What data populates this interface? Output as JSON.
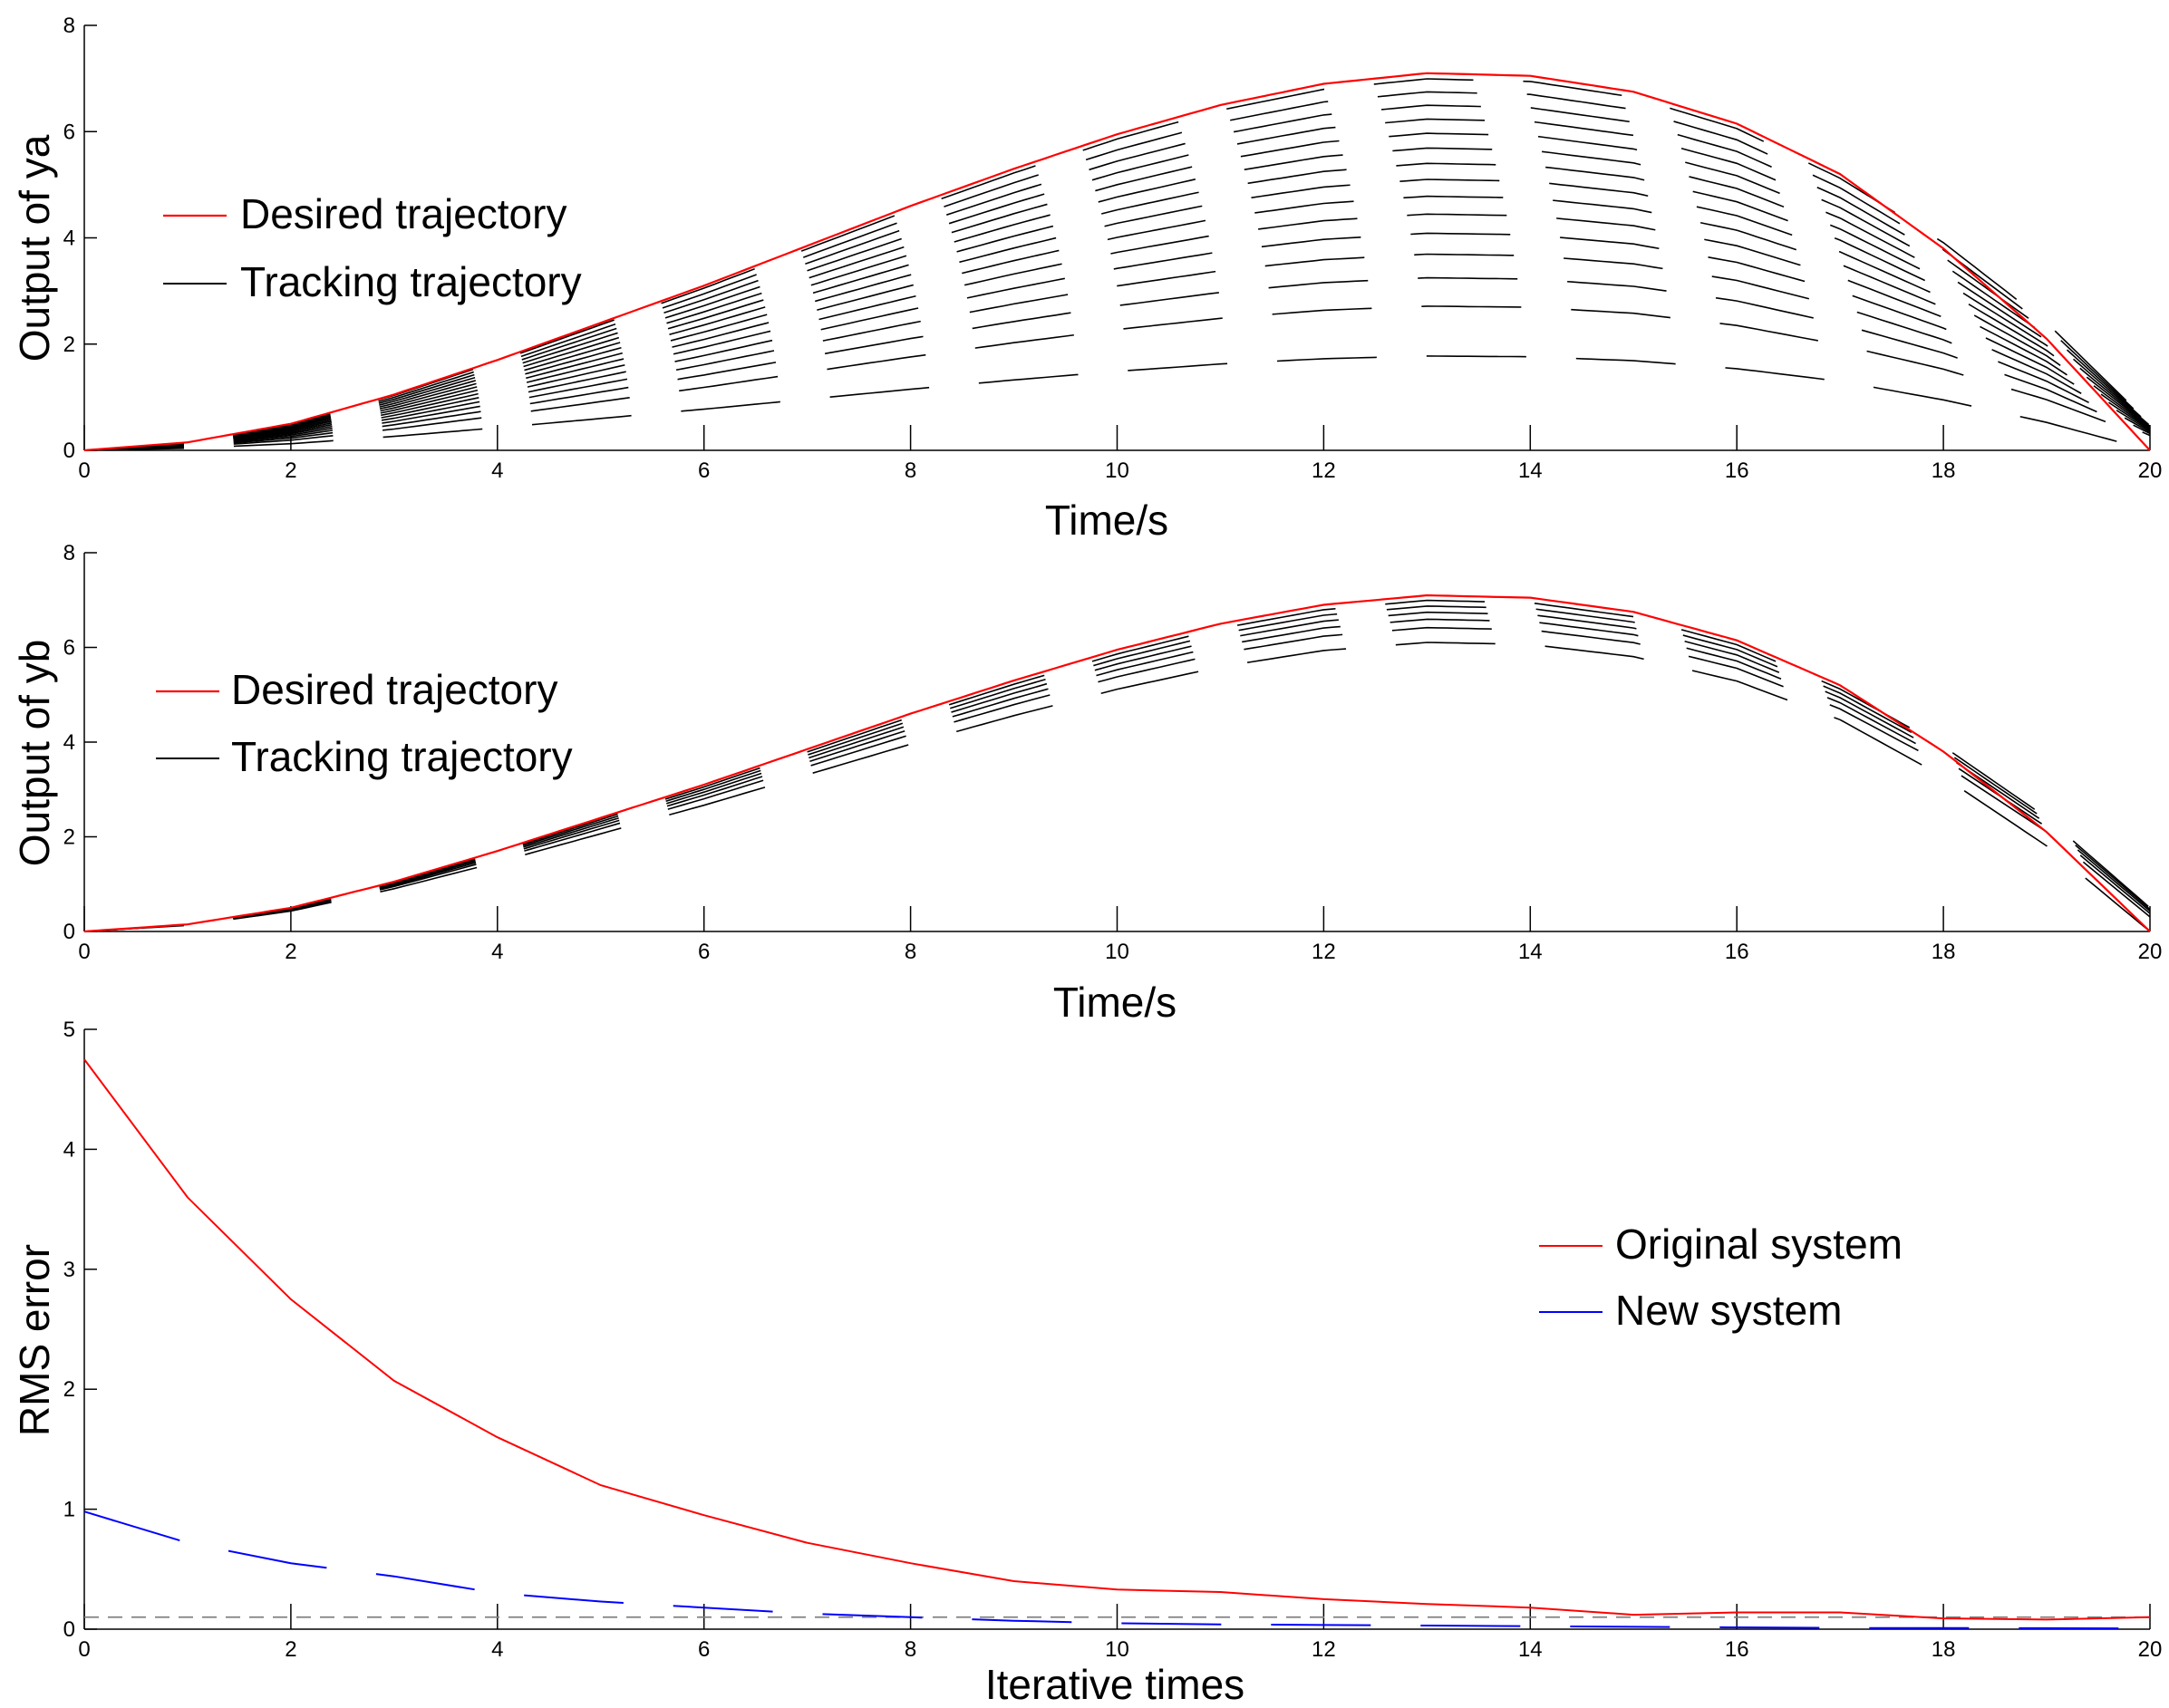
{
  "chart_data": [
    {
      "type": "line",
      "xlabel": "Time/s",
      "ylabel": "Output of ya",
      "xlim": [
        0,
        20
      ],
      "ylim": [
        0,
        8
      ],
      "xticks": [
        "0",
        "2",
        "4",
        "6",
        "8",
        "10",
        "12",
        "14",
        "16",
        "18",
        "20"
      ],
      "yticks": [
        "0",
        "2",
        "4",
        "6",
        "8"
      ],
      "grid": false,
      "legend": {
        "placement": "left",
        "entries": [
          "Desired trajectory",
          "Tracking trajectory"
        ]
      },
      "colors": {
        "desired": "#ff0000",
        "tracking": "#000000"
      },
      "desired": {
        "name": "Desired trajectory",
        "x": [
          0,
          1,
          2,
          3,
          4,
          5,
          6,
          7,
          8,
          9,
          10,
          11,
          12,
          13,
          14,
          15,
          16,
          17,
          18,
          19,
          20
        ],
        "y": [
          0,
          0.15,
          0.5,
          1.05,
          1.7,
          2.4,
          3.1,
          3.85,
          4.6,
          5.3,
          5.95,
          6.5,
          6.9,
          7.1,
          7.05,
          6.75,
          6.15,
          5.2,
          3.8,
          2.1,
          0
        ]
      },
      "tracking": {
        "name": "Tracking trajectory",
        "iterations": 15,
        "first_iteration_scale": 0.25,
        "final_endpoint_offset": 0.5
      }
    },
    {
      "type": "line",
      "xlabel": "Time/s",
      "ylabel": "Output of yb",
      "xlim": [
        0,
        20
      ],
      "ylim": [
        0,
        8
      ],
      "xticks": [
        "0",
        "2",
        "4",
        "6",
        "8",
        "10",
        "12",
        "14",
        "16",
        "18",
        "20"
      ],
      "yticks": [
        "0",
        "2",
        "4",
        "6",
        "8"
      ],
      "grid": false,
      "legend": {
        "placement": "left",
        "entries": [
          "Desired trajectory",
          "Tracking trajectory"
        ]
      },
      "colors": {
        "desired": "#ff0000",
        "tracking": "#000000"
      },
      "desired": {
        "name": "Desired trajectory",
        "x": [
          0,
          1,
          2,
          3,
          4,
          5,
          6,
          7,
          8,
          9,
          10,
          11,
          12,
          13,
          14,
          15,
          16,
          17,
          18,
          19,
          20
        ],
        "y": [
          0,
          0.15,
          0.5,
          1.05,
          1.7,
          2.4,
          3.1,
          3.85,
          4.6,
          5.3,
          5.95,
          6.5,
          6.9,
          7.1,
          7.05,
          6.75,
          6.15,
          5.2,
          3.8,
          2.1,
          0
        ]
      },
      "tracking": {
        "name": "Tracking trajectory",
        "iterations": 6,
        "first_iteration_scale": 0.86,
        "final_endpoint_offset": 0.5
      }
    },
    {
      "type": "line",
      "xlabel": "Iterative times",
      "ylabel": "RMS error",
      "xlim": [
        0,
        20
      ],
      "ylim": [
        0,
        5
      ],
      "xticks": [
        "0",
        "2",
        "4",
        "6",
        "8",
        "10",
        "12",
        "14",
        "16",
        "18",
        "20"
      ],
      "yticks": [
        "0",
        "1",
        "2",
        "3",
        "4",
        "5"
      ],
      "grid": false,
      "legend": {
        "placement": "right",
        "entries": [
          "Original system",
          "New system"
        ]
      },
      "reference_line": {
        "y": 0.1,
        "color": "#808080",
        "style": "dashed"
      },
      "series": [
        {
          "name": "Original system",
          "color": "#ff0000",
          "x": [
            0,
            1,
            2,
            3,
            4,
            5,
            6,
            7,
            8,
            9,
            10,
            11,
            12,
            13,
            14,
            15,
            16,
            17,
            18,
            19,
            20
          ],
          "y": [
            4.75,
            3.6,
            2.75,
            2.07,
            1.6,
            1.2,
            0.95,
            0.72,
            0.55,
            0.4,
            0.33,
            0.31,
            0.25,
            0.21,
            0.18,
            0.12,
            0.14,
            0.14,
            0.09,
            0.08,
            0.1
          ]
        },
        {
          "name": "New system",
          "color": "#0000ff",
          "x": [
            0,
            1,
            2,
            3,
            4,
            5,
            6,
            7,
            8,
            9,
            10,
            11,
            12,
            13,
            14,
            15,
            16,
            17,
            18,
            19,
            20
          ],
          "y": [
            0.98,
            0.72,
            0.55,
            0.44,
            0.3,
            0.23,
            0.18,
            0.13,
            0.1,
            0.07,
            0.05,
            0.04,
            0.035,
            0.03,
            0.025,
            0.02,
            0.015,
            0.01,
            0.01,
            0.008,
            0.005
          ]
        }
      ]
    }
  ]
}
